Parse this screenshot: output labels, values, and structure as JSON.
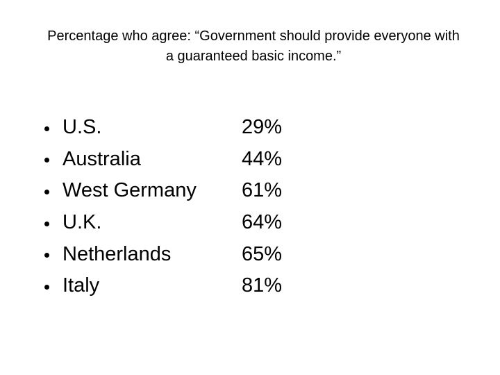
{
  "slide": {
    "title": {
      "full": "Percentage who agree: “Government should provide everyone with a guaranteed basic income.”",
      "lines": [
        "Percentage who agree: “Government should provide everyone with",
        "a guaranteed basic income.”"
      ]
    },
    "items": [
      {
        "label": "U.S.",
        "value": "29%"
      },
      {
        "label": "Australia",
        "value": "44%"
      },
      {
        "label": "West Germany",
        "value": "61%"
      },
      {
        "label": "U.K.",
        "value": "64%"
      },
      {
        "label": "Netherlands",
        "value": "65%"
      },
      {
        "label": "Italy",
        "value": "81%"
      }
    ],
    "colors": {
      "background": "#ffffff",
      "text": "#000000"
    }
  },
  "chart_data": {
    "type": "table",
    "title": "Percentage who agree: “Government should provide everyone with a guaranteed basic income.”",
    "categories": [
      "U.S.",
      "Australia",
      "West Germany",
      "U.K.",
      "Netherlands",
      "Italy"
    ],
    "values": [
      29,
      44,
      61,
      64,
      65,
      81
    ],
    "unit": "%"
  }
}
